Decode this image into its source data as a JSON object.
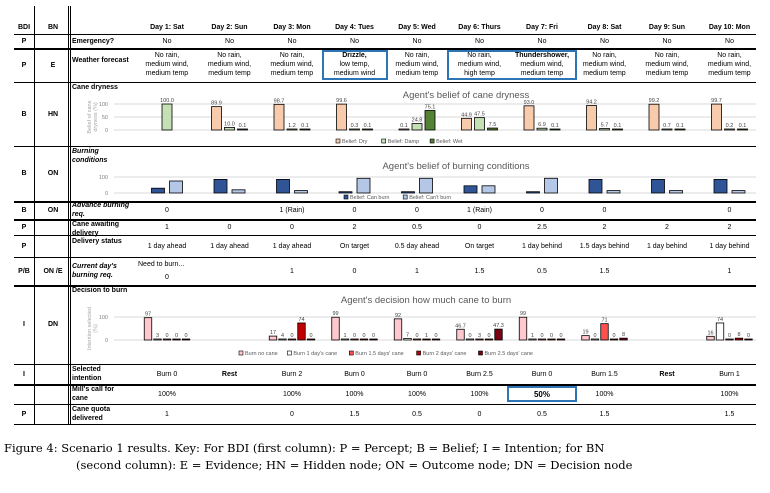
{
  "header": {
    "bdi": "BDI",
    "bn": "BN"
  },
  "days": [
    "Day 1: Sat",
    "Day 2: Sun",
    "Day 3: Mon",
    "Day 4: Tues",
    "Day 5: Wed",
    "Day 6: Thurs",
    "Day 7: Fri",
    "Day 8: Sat",
    "Day 9: Sun",
    "Day 10: Mon"
  ],
  "rows": {
    "emergency": {
      "bdi": "P",
      "bn": "",
      "label": "Emergency?",
      "values": [
        "No",
        "No",
        "No",
        "No",
        "No",
        "No",
        "No",
        "No",
        "No",
        "No"
      ]
    },
    "weather": {
      "bdi": "P",
      "bn": "E",
      "label": "Weather forecast",
      "values": [
        [
          "No rain,",
          "medium wind,",
          "medium temp"
        ],
        [
          "No rain,",
          "medium wind,",
          "medium temp"
        ],
        [
          "No rain,",
          "medium wind,",
          "medium temp"
        ],
        [
          "Drizzle,",
          "low temp,",
          "medium wind"
        ],
        [
          "No rain,",
          "medium wind,",
          "medium temp"
        ],
        [
          "No rain,",
          "medium wind,",
          "high temp"
        ],
        [
          "Thundershower,",
          "medium wind,",
          "medium temp"
        ],
        [
          "No rain,",
          "medium wind,",
          "medium temp"
        ],
        [
          "No rain,",
          "medium wind,",
          "medium temp"
        ],
        [
          "No rain,",
          "medium wind,",
          "medium temp"
        ]
      ]
    },
    "cane_dryness": {
      "bdi": "B",
      "bn": "HN",
      "label": "Cane dryness"
    },
    "burning_conditions": {
      "bdi": "B",
      "bn": "ON",
      "label": "Burning conditions"
    },
    "advance_burning": {
      "bdi": "B",
      "bn": "ON",
      "label": "Advance burning req.",
      "values": [
        "0",
        "",
        "1 (Rain)",
        "0",
        "0",
        "1 (Rain)",
        "0",
        "0",
        "",
        "0"
      ]
    },
    "cane_awaiting": {
      "bdi": "P",
      "bn": "",
      "label": "Cane awaiting delivery",
      "values": [
        "1",
        "0",
        "0",
        "2",
        "0.5",
        "0",
        "2.5",
        "2",
        "2",
        "2"
      ]
    },
    "delivery_status": {
      "bdi": "P",
      "bn": "",
      "label": "Delivery status",
      "values": [
        "1 day ahead",
        "1 day ahead",
        "1 day ahead",
        "On target",
        "0.5 day ahead",
        "On target",
        "1 day behind",
        "1.5 days behind",
        "1 day behind",
        "1 day behind"
      ]
    },
    "current_burning": {
      "bdi": "P/B",
      "bn": "ON /E",
      "label": "Current day's burning req.",
      "day1_note": "Need to burn...",
      "values": [
        "0",
        "",
        "1",
        "0",
        "1",
        "1.5",
        "0.5",
        "1.5",
        "",
        "1"
      ]
    },
    "decision": {
      "bdi": "I",
      "bn": "DN",
      "label": "Decision to burn"
    },
    "selected_intention": {
      "bdi": "I",
      "bn": "",
      "label": "Selected intention",
      "values": [
        "Burn 0",
        "Rest",
        "Burn 2",
        "Burn 0",
        "Burn 0",
        "Burn 2.5",
        "Burn 0",
        "Burn 1.5",
        "Rest",
        "Burn 1"
      ]
    },
    "mills_call": {
      "bdi": "",
      "bn": "",
      "label": "Mill's call for cane",
      "values": [
        "100%",
        "",
        "100%",
        "100%",
        "100%",
        "100%",
        "50%",
        "100%",
        "",
        "100%"
      ]
    },
    "cane_quota": {
      "bdi": "P",
      "bn": "",
      "label": "Cane quota delivered",
      "values": [
        "1",
        "",
        "0",
        "1.5",
        "0.5",
        "0",
        "0.5",
        "1.5",
        "",
        "1.5"
      ]
    }
  },
  "chart_data": [
    {
      "type": "bar",
      "title": "Agent's belief of cane dryness",
      "ylabel": "Belief of cane dryness (%)",
      "ylim": [
        0,
        100
      ],
      "yticks": [
        "0",
        "50",
        "100"
      ],
      "categories": [
        "Day 1",
        "Day 2",
        "Day 3",
        "Day 4",
        "Day 5",
        "Day 6",
        "Day 7",
        "Day 8",
        "Day 9",
        "Day 10"
      ],
      "series": [
        {
          "name": "Belief: Dry",
          "color": "#f8cbad",
          "values": [
            null,
            89.9,
            98.7,
            99.6,
            0.1,
            44.9,
            93.0,
            94.2,
            99.2,
            99.7
          ]
        },
        {
          "name": "Belief: Damp",
          "color": "#c5e0b4",
          "values": [
            100.0,
            10.0,
            1.2,
            0.3,
            24.8,
            47.5,
            6.9,
            5.7,
            0.7,
            0.2
          ]
        },
        {
          "name": "Belief: Wet",
          "color": "#548235",
          "values": [
            null,
            0.1,
            0.1,
            0.1,
            75.1,
            7.5,
            0.1,
            0.1,
            0.1,
            0.1
          ]
        }
      ],
      "legend": "bottom"
    },
    {
      "type": "bar",
      "title": "Agent's belief of burning conditions",
      "ylim": [
        0,
        100
      ],
      "yticks": [
        "0",
        "100"
      ],
      "categories": [
        "Day 1",
        "Day 2",
        "Day 3",
        "Day 4",
        "Day 5",
        "Day 6",
        "Day 7",
        "Day 8",
        "Day 9",
        "Day 10"
      ],
      "series": [
        {
          "name": "Belief: Can burn",
          "color": "#2f5597",
          "values": [
            30,
            85,
            85,
            8,
            8,
            45,
            8,
            85,
            85,
            85
          ]
        },
        {
          "name": "Belief: Can't burn",
          "color": "#b4c7e7",
          "values": [
            75,
            20,
            15,
            92,
            92,
            45,
            92,
            15,
            15,
            15
          ]
        }
      ],
      "legend": "bottom-right"
    },
    {
      "type": "bar",
      "title": "Agent's decision how much cane to burn",
      "ylabel": "Intention selected (%)",
      "ylim": [
        0,
        100
      ],
      "yticks": [
        "0",
        "100"
      ],
      "categories": [
        "Day 1",
        "Day 2",
        "Day 3",
        "Day 4",
        "Day 5",
        "Day 6",
        "Day 7",
        "Day 8",
        "Day 9",
        "Day 10"
      ],
      "series": [
        {
          "name": "Burn no cane",
          "color": "#ffc7ce",
          "values": [
            97,
            null,
            17,
            99,
            92,
            46.7,
            99,
            19,
            null,
            16
          ]
        },
        {
          "name": "Burn 1 day's cane",
          "color": "#ffffff",
          "values": [
            3,
            null,
            4,
            1,
            7,
            0,
            1,
            0,
            null,
            74
          ]
        },
        {
          "name": "Burn 1.5 days' cane",
          "color": "#ff5050",
          "values": [
            0,
            null,
            0,
            0,
            0,
            3,
            0,
            71,
            null,
            0
          ]
        },
        {
          "name": "Burn 2 days' cane",
          "color": "#c00000",
          "values": [
            0,
            null,
            74,
            0,
            1,
            0,
            0,
            0,
            null,
            8
          ]
        },
        {
          "name": "Burn 2.5 days' cane",
          "color": "#7b0011",
          "values": [
            0,
            null,
            0,
            0,
            0,
            47.3,
            0,
            8,
            null,
            0
          ]
        }
      ],
      "legend": "bottom"
    }
  ],
  "caption": {
    "line1": "Figure 4: Scenario 1 results.  Key:  For BDI (first column):  P = Percept; B = Belief; I = Intention; for BN",
    "line2": "(second column):  E = Evidence; HN = Hidden node; ON = Outcome node; DN = Decision node"
  }
}
